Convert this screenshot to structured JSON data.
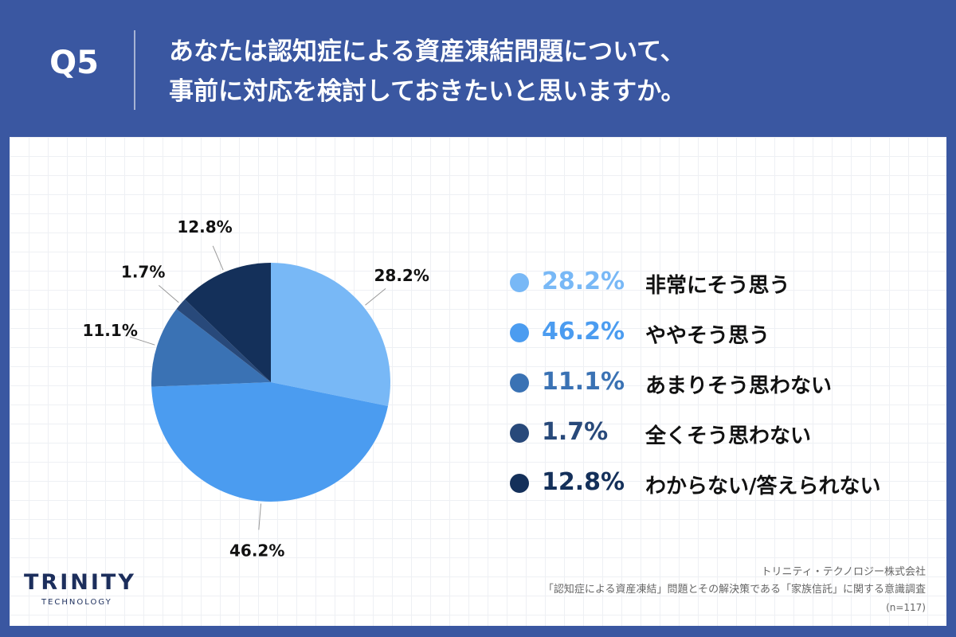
{
  "header": {
    "question_number": "Q5",
    "title_line1": "あなたは認知症による資産凍結問題について、",
    "title_line2": "事前に対応を検討しておきたいと思いますか。"
  },
  "chart_data": {
    "type": "pie",
    "unit": "%",
    "slices": [
      {
        "label": "非常にそう思う",
        "value": 28.2,
        "display": "28.2%",
        "color": "#78b8f6"
      },
      {
        "label": "ややそう思う",
        "value": 46.2,
        "display": "46.2%",
        "color": "#4b9cf0"
      },
      {
        "label": "あまりそう思わない",
        "value": 11.1,
        "display": "11.1%",
        "color": "#3a72b4"
      },
      {
        "label": "全くそう思わない",
        "value": 1.7,
        "display": "1.7%",
        "color": "#28497a"
      },
      {
        "label": "わからない/答えられない",
        "value": 12.8,
        "display": "12.8%",
        "color": "#14305a"
      }
    ],
    "start": "12 o'clock",
    "direction": "clockwise",
    "legend_position": "right"
  },
  "legend_colors": {
    "percent_text": "#4b9cf0",
    "label_text": "#111111"
  },
  "logo": {
    "main": "TRINITY",
    "sub": "TECHNOLOGY"
  },
  "source": {
    "company": "トリニティ・テクノロジー株式会社",
    "survey": "「認知症による資産凍結」問題とその解決策である「家族信託」に関する意識調査",
    "sample": "(n=117)"
  }
}
